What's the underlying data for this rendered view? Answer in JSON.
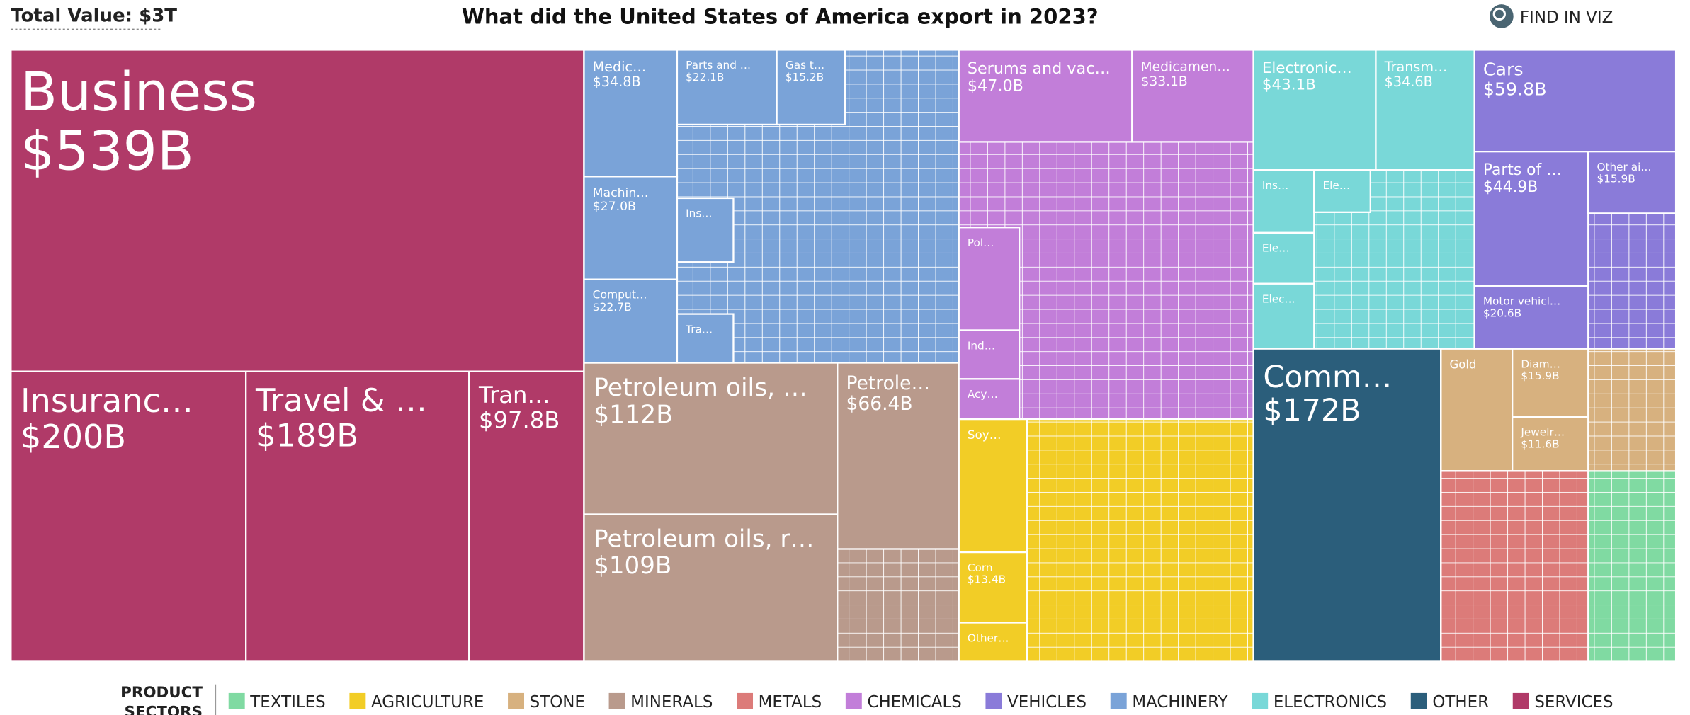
{
  "header": {
    "total": "Total Value: $3T",
    "find": "FIND IN VIZ"
  },
  "chart_data": {
    "type": "treemap",
    "title": "What did the United States of America export in 2023?",
    "legend_title": [
      "PRODUCT",
      "SECTORS"
    ],
    "sectors": [
      {
        "name": "TEXTILES",
        "color": "#80daa2",
        "tiles": []
      },
      {
        "name": "AGRICULTURE",
        "color": "#f2cd26",
        "tiles": [
          {
            "label": "Soy…"
          },
          {
            "label": "Corn",
            "value": 13.4,
            "value_label": "$13.4B"
          },
          {
            "label": "Other…"
          }
        ]
      },
      {
        "name": "STONE",
        "color": "#d7b17f",
        "tiles": [
          {
            "label": "Gold"
          },
          {
            "label": "Diam…",
            "value": 15.9,
            "value_label": "$15.9B"
          },
          {
            "label": "Jewelr…",
            "value": 11.6,
            "value_label": "$11.6B"
          }
        ]
      },
      {
        "name": "MINERALS",
        "color": "#b99a8c",
        "tiles": [
          {
            "label": "Petroleum oils, …",
            "value": 112,
            "value_label": "$112B"
          },
          {
            "label": "Petroleum oils, r…",
            "value": 109,
            "value_label": "$109B"
          },
          {
            "label": "Petrole…",
            "value": 66.4,
            "value_label": "$66.4B"
          }
        ]
      },
      {
        "name": "METALS",
        "color": "#dc7b79",
        "tiles": []
      },
      {
        "name": "CHEMICALS",
        "color": "#c27ed9",
        "tiles": [
          {
            "label": "Serums and vac…",
            "value": 47.0,
            "value_label": "$47.0B"
          },
          {
            "label": "Medicamen…",
            "value": 33.1,
            "value_label": "$33.1B"
          },
          {
            "label": "Pol…"
          },
          {
            "label": "Ind…"
          },
          {
            "label": "Acy…"
          }
        ]
      },
      {
        "name": "VEHICLES",
        "color": "#8a7bd9",
        "tiles": [
          {
            "label": "Cars",
            "value": 59.8,
            "value_label": "$59.8B"
          },
          {
            "label": "Parts of …",
            "value": 44.9,
            "value_label": "$44.9B"
          },
          {
            "label": "Other ai…",
            "value": 15.9,
            "value_label": "$15.9B"
          },
          {
            "label": "Motor vehicl…",
            "value": 20.6,
            "value_label": "$20.6B"
          }
        ]
      },
      {
        "name": "MACHINERY",
        "color": "#7aa3d8",
        "tiles": [
          {
            "label": "Medic…",
            "value": 34.8,
            "value_label": "$34.8B"
          },
          {
            "label": "Parts and …",
            "value": 22.1,
            "value_label": "$22.1B"
          },
          {
            "label": "Gas t…",
            "value": 15.2,
            "value_label": "$15.2B"
          },
          {
            "label": "Machin…",
            "value": 27.0,
            "value_label": "$27.0B"
          },
          {
            "label": "Comput…",
            "value": 22.7,
            "value_label": "$22.7B"
          },
          {
            "label": "Ins…"
          },
          {
            "label": "Tra…"
          }
        ]
      },
      {
        "name": "ELECTRONICS",
        "color": "#79d8d8",
        "tiles": [
          {
            "label": "Electronic…",
            "value": 43.1,
            "value_label": "$43.1B"
          },
          {
            "label": "Transm…",
            "value": 34.6,
            "value_label": "$34.6B"
          },
          {
            "label": "Ins…"
          },
          {
            "label": "Ele…"
          },
          {
            "label": "Ele…"
          },
          {
            "label": "Elec…"
          }
        ]
      },
      {
        "name": "OTHER",
        "color": "#2b5e7b",
        "tiles": [
          {
            "label": "Comm…",
            "value": 172,
            "value_label": "$172B"
          }
        ]
      },
      {
        "name": "SERVICES",
        "color": "#b03a68",
        "tiles": [
          {
            "label": "Business",
            "value": 539,
            "value_label": "$539B"
          },
          {
            "label": "Insuranc…",
            "value": 200,
            "value_label": "$200B"
          },
          {
            "label": "Travel & …",
            "value": 189,
            "value_label": "$189B"
          },
          {
            "label": "Tran…",
            "value": 97.8,
            "value_label": "$97.8B"
          }
        ]
      }
    ]
  }
}
